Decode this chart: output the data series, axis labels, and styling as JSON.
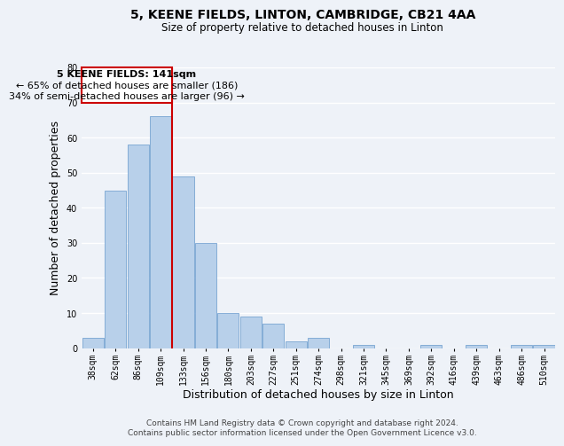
{
  "title": "5, KEENE FIELDS, LINTON, CAMBRIDGE, CB21 4AA",
  "subtitle": "Size of property relative to detached houses in Linton",
  "xlabel": "Distribution of detached houses by size in Linton",
  "ylabel": "Number of detached properties",
  "bar_labels": [
    "38sqm",
    "62sqm",
    "86sqm",
    "109sqm",
    "133sqm",
    "156sqm",
    "180sqm",
    "203sqm",
    "227sqm",
    "251sqm",
    "274sqm",
    "298sqm",
    "321sqm",
    "345sqm",
    "369sqm",
    "392sqm",
    "416sqm",
    "439sqm",
    "463sqm",
    "486sqm",
    "510sqm"
  ],
  "bar_values": [
    3,
    45,
    58,
    66,
    49,
    30,
    10,
    9,
    7,
    2,
    3,
    0,
    1,
    0,
    0,
    1,
    0,
    1,
    0,
    1,
    1
  ],
  "bar_color": "#b8d0ea",
  "vline_index": 3.5,
  "vline_color": "#cc0000",
  "ylim": [
    0,
    80
  ],
  "yticks": [
    0,
    10,
    20,
    30,
    40,
    50,
    60,
    70,
    80
  ],
  "annotation_title": "5 KEENE FIELDS: 141sqm",
  "annotation_line1": "← 65% of detached houses are smaller (186)",
  "annotation_line2": "34% of semi-detached houses are larger (96) →",
  "footer_line1": "Contains HM Land Registry data © Crown copyright and database right 2024.",
  "footer_line2": "Contains public sector information licensed under the Open Government Licence v3.0.",
  "bg_color": "#eef2f8",
  "plot_bg_color": "#eef2f8",
  "grid_color": "#ffffff",
  "title_fontsize": 10,
  "subtitle_fontsize": 8.5,
  "axis_label_fontsize": 9,
  "tick_fontsize": 7,
  "annotation_fontsize": 8,
  "footer_fontsize": 6.5
}
